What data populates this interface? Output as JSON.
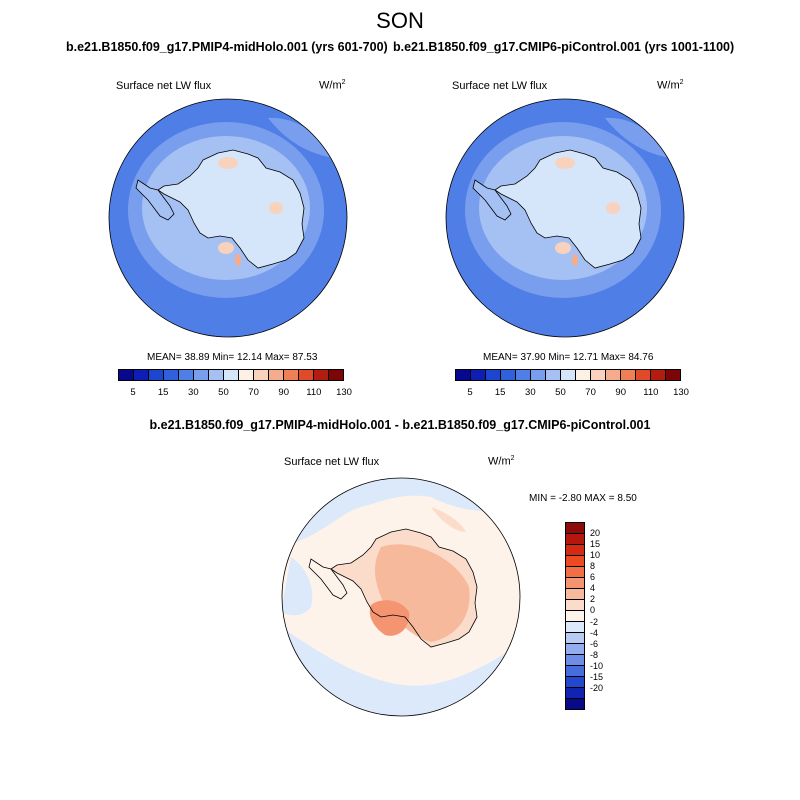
{
  "title": "SON",
  "panels": [
    {
      "case": "b.e21.B1850.f09_g17.PMIP4-midHolo.001 (yrs 601-700)",
      "variable": "Surface net LW flux",
      "units_base": "W/m",
      "units_exp": "2",
      "stats_text": "MEAN=  38.89  Min=  12.14  Max=  87.53",
      "mean": 38.89,
      "min": 12.14,
      "max": 87.53
    },
    {
      "case": "b.e21.B1850.f09_g17.CMIP6-piControl.001 (yrs 1001-1100)",
      "variable": "Surface net LW flux",
      "units_base": "W/m",
      "units_exp": "2",
      "stats_text": "MEAN=  37.90  Min=  12.71  Max=  84.76",
      "mean": 37.9,
      "min": 12.71,
      "max": 84.76
    },
    {
      "case": "b.e21.B1850.f09_g17.PMIP4-midHolo.001 - b.e21.B1850.f09_g17.CMIP6-piControl.001",
      "variable": "Surface net LW flux",
      "units_base": "W/m",
      "units_exp": "2",
      "stats_text": "MIN =  -2.80 MAX =   8.50",
      "min": -2.8,
      "max": 8.5
    }
  ],
  "colorbar_main": {
    "colors": [
      "#08088f",
      "#0c1eb4",
      "#1c45d0",
      "#2f60de",
      "#4f7ee6",
      "#7a9eee",
      "#a5c1f4",
      "#d5e6fa",
      "#fdf0e5",
      "#f8d2bc",
      "#f4ac8c",
      "#ef7f55",
      "#e04a28",
      "#b51c10",
      "#7e0505"
    ],
    "labels": [
      "5",
      "15",
      "30",
      "50",
      "70",
      "90",
      "110",
      "130"
    ]
  },
  "colorbar_diff": {
    "colors": [
      "#8e0b0b",
      "#b5160e",
      "#d52a14",
      "#ec4a22",
      "#f26e45",
      "#f49470",
      "#f6b99c",
      "#fbdccb",
      "#fdf3ea",
      "#dbe9fa",
      "#b7ccf5",
      "#93aeee",
      "#6d8de6",
      "#466ddc",
      "#2447cf",
      "#1024b0",
      "#080a8a"
    ],
    "labels": [
      "20",
      "15",
      "10",
      "8",
      "6",
      "4",
      "2",
      "0",
      "-2",
      "-4",
      "-6",
      "-8",
      "-10",
      "-15",
      "-20"
    ]
  },
  "map_colors": {
    "ocean_far": "#4f7ee6",
    "ocean_mid": "#7a9eee",
    "ocean_near": "#a5c1f4",
    "land_core": "#d5e6fa",
    "land_warm": "#f8d2bc",
    "land_hot": "#f4ac8c",
    "diff_ocean": "#fdf3ea",
    "diff_cool": "#dbe9fa",
    "diff_warm1": "#fbdccb",
    "diff_warm2": "#f6b99c",
    "diff_warm3": "#f49470"
  }
}
